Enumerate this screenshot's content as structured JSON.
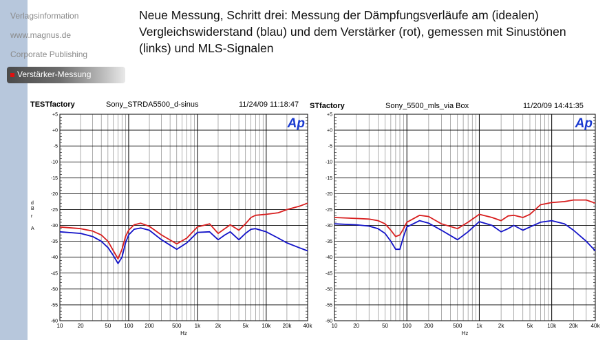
{
  "colors": {
    "sidebar": "#b7c7dc",
    "reference": "#1212c8",
    "amplifier": "#d81e1e",
    "ap_logo": "#1a3ad0"
  },
  "nav": {
    "items": [
      "Verlagsinformation",
      "www.magnus.de",
      "Corporate Publishing"
    ],
    "active": "Verstärker-Messung"
  },
  "headline": "Neue Messung, Schritt drei: Messung der Dämpfungsverläufe am (idealen) Vergleichswiderstand (blau) und dem Verstärker (rot), gemessen mit Sinustönen (links) und MLS-Signalen",
  "charts": [
    {
      "header_left": "TESTfactory",
      "header_mid": "Sony_STRDA5500_d-sinus",
      "header_right": "11/24/09 11:18:47",
      "logo": "Ap"
    },
    {
      "header_left": "STfactory",
      "header_mid": "Sony_5500_mls_via Box",
      "header_right": "11/20/09 14:41:35",
      "logo": "Ap"
    }
  ],
  "chart_data": [
    {
      "type": "line",
      "title": "Sony_STRDA5500_d-sinus",
      "xlabel": "Hz",
      "ylabel": "d B r A",
      "xscale": "log",
      "xlim": [
        10,
        40000
      ],
      "ylim": [
        -60,
        5
      ],
      "grid": true,
      "xticks": [
        "10",
        "20",
        "50",
        "100",
        "200",
        "500",
        "1k",
        "2k",
        "5k",
        "10k",
        "20k",
        "40k"
      ],
      "yticks": [
        "+5",
        "+0",
        "-5",
        "-10",
        "-15",
        "-20",
        "-25",
        "-30",
        "-35",
        "-40",
        "-45",
        "-50",
        "-55",
        "-60"
      ],
      "series": [
        {
          "color": "red",
          "x": [
            10,
            20,
            30,
            40,
            50,
            60,
            70,
            80,
            90,
            100,
            120,
            150,
            200,
            300,
            500,
            700,
            1000,
            1500,
            2000,
            2500,
            3000,
            4000,
            5000,
            6000,
            7000,
            10000,
            15000,
            20000,
            30000,
            40000
          ],
          "y": [
            -30.5,
            -31,
            -31.8,
            -33,
            -35,
            -38,
            -40.5,
            -37.5,
            -33.5,
            -31.5,
            -29.8,
            -29.3,
            -30.3,
            -33,
            -35.8,
            -34,
            -30.5,
            -29.5,
            -32.5,
            -31,
            -29.8,
            -31.5,
            -29.5,
            -27.5,
            -26.8,
            -26.5,
            -26,
            -25,
            -24,
            -23
          ]
        },
        {
          "color": "blue",
          "x": [
            10,
            20,
            30,
            40,
            50,
            60,
            70,
            80,
            90,
            100,
            120,
            150,
            200,
            300,
            500,
            700,
            1000,
            1500,
            2000,
            2500,
            3000,
            4000,
            5000,
            6000,
            7000,
            10000,
            15000,
            20000,
            30000,
            40000
          ],
          "y": [
            -32,
            -32.5,
            -33.5,
            -35,
            -37,
            -39.5,
            -42,
            -40,
            -35.5,
            -33,
            -31.2,
            -30.8,
            -31.5,
            -34.5,
            -37.5,
            -35.5,
            -32.2,
            -32,
            -34.5,
            -33,
            -32,
            -34.5,
            -32.5,
            -31.2,
            -31,
            -32,
            -34,
            -35.5,
            -37,
            -38
          ]
        }
      ]
    },
    {
      "type": "line",
      "title": "Sony_5500_mls_via Box",
      "xlabel": "Hz",
      "xscale": "log",
      "xlim": [
        10,
        40000
      ],
      "ylim": [
        -60,
        5
      ],
      "grid": true,
      "xticks": [
        "10",
        "20",
        "50",
        "100",
        "200",
        "500",
        "1k",
        "2k",
        "5k",
        "10k",
        "20k",
        "40k"
      ],
      "yticks": [
        "+5",
        "+0",
        "-5",
        "-10",
        "-15",
        "-20",
        "-25",
        "-30",
        "-35",
        "-40",
        "-45",
        "-50",
        "-55",
        "-60"
      ],
      "series": [
        {
          "color": "red",
          "x": [
            10,
            20,
            30,
            40,
            50,
            60,
            70,
            80,
            90,
            100,
            150,
            200,
            300,
            500,
            700,
            1000,
            1500,
            2000,
            2500,
            3000,
            4000,
            5000,
            7000,
            10000,
            15000,
            20000,
            30000,
            40000
          ],
          "y": [
            -27.5,
            -27.8,
            -28,
            -28.5,
            -29.5,
            -31.5,
            -33.5,
            -33,
            -31,
            -29,
            -26.8,
            -27.2,
            -29.5,
            -31,
            -29,
            -26.5,
            -27.5,
            -28.5,
            -27,
            -26.8,
            -27.5,
            -26.5,
            -23.5,
            -22.8,
            -22.5,
            -22,
            -22,
            -23
          ]
        },
        {
          "color": "blue",
          "x": [
            10,
            20,
            30,
            40,
            50,
            60,
            70,
            80,
            90,
            100,
            150,
            200,
            300,
            500,
            700,
            1000,
            1500,
            2000,
            2500,
            3000,
            4000,
            5000,
            7000,
            10000,
            15000,
            20000,
            30000,
            40000
          ],
          "y": [
            -29.5,
            -29.8,
            -30.2,
            -31,
            -32.5,
            -35,
            -37.5,
            -37.5,
            -33.5,
            -30.5,
            -28.5,
            -29.3,
            -31.5,
            -34.5,
            -32,
            -28.8,
            -30,
            -32,
            -31,
            -30,
            -31.5,
            -30.5,
            -29,
            -28.5,
            -29.5,
            -31.5,
            -35,
            -38
          ]
        }
      ]
    }
  ]
}
